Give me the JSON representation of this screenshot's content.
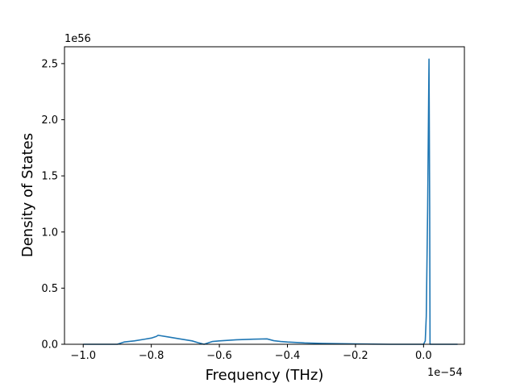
{
  "chart_data": {
    "type": "line",
    "title": "",
    "xlabel": "Frequency (THz)",
    "ylabel": "Density of States",
    "x_offset_label": "1e−54",
    "y_offset_label": "1e56",
    "xlim": [
      -1.055,
      0.12
    ],
    "ylim": [
      0,
      2.65
    ],
    "x_ticks": [
      -1.0,
      -0.8,
      -0.6,
      -0.4,
      -0.2,
      0.0
    ],
    "x_tick_labels": [
      "−1.0",
      "−0.8",
      "−0.6",
      "−0.4",
      "−0.2",
      "0.0"
    ],
    "y_ticks": [
      0.0,
      0.5,
      1.0,
      1.5,
      2.0,
      2.5
    ],
    "y_tick_labels": [
      "0.0",
      "0.5",
      "1.0",
      "1.5",
      "2.0",
      "2.5"
    ],
    "grid": false,
    "color": "#1f77b4",
    "series": [
      {
        "x": [
          -1.0,
          -0.9,
          -0.88,
          -0.85,
          -0.82,
          -0.8,
          -0.785,
          -0.78,
          -0.75,
          -0.72,
          -0.7,
          -0.68,
          -0.66,
          -0.645,
          -0.63,
          -0.62,
          -0.6,
          -0.55,
          -0.5,
          -0.46,
          -0.45,
          -0.44,
          -0.42,
          -0.4,
          -0.35,
          -0.3,
          -0.2,
          -0.1,
          -0.05,
          0.0,
          0.005,
          0.008,
          0.012,
          0.016,
          0.018,
          0.019,
          0.021,
          0.022,
          0.1
        ],
        "y": [
          0.0,
          0.0,
          0.02,
          0.03,
          0.045,
          0.055,
          0.07,
          0.08,
          0.065,
          0.05,
          0.04,
          0.03,
          0.012,
          0.0,
          0.015,
          0.025,
          0.03,
          0.04,
          0.045,
          0.048,
          0.04,
          0.032,
          0.025,
          0.02,
          0.012,
          0.008,
          0.003,
          0.0,
          0.0,
          0.0,
          0.03,
          0.25,
          1.2,
          2.54,
          1.2,
          0.0,
          0.0,
          0.0,
          0.0
        ]
      }
    ]
  }
}
